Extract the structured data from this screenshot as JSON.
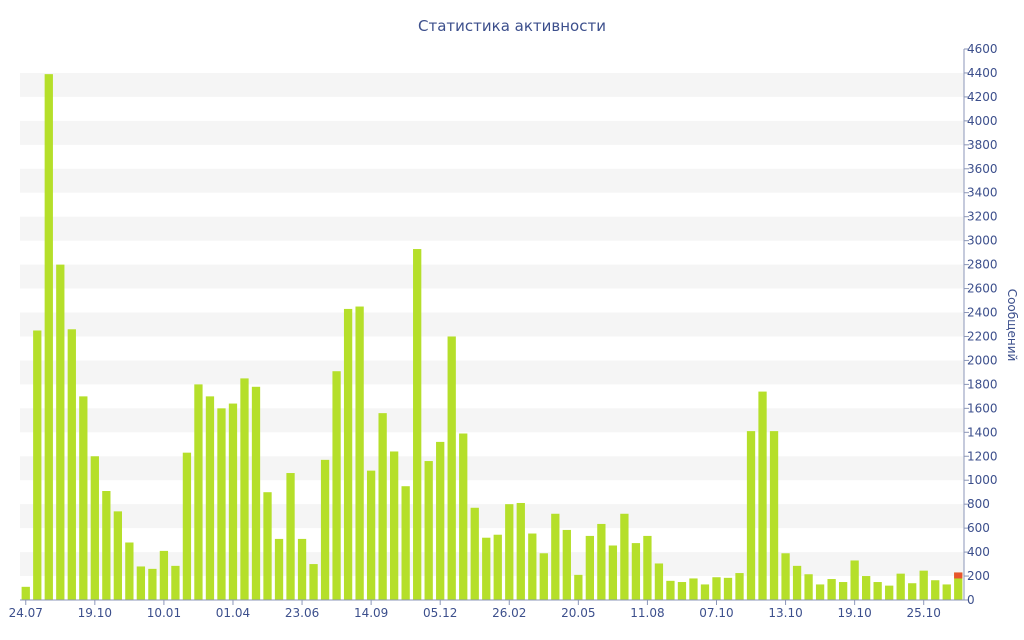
{
  "chart_data": {
    "type": "bar",
    "title": "Статистика активности",
    "ylabel": "Сообщений",
    "ylim": [
      0,
      4600
    ],
    "y_ticks": [
      0,
      200,
      400,
      600,
      800,
      1000,
      1200,
      1400,
      1600,
      1800,
      2000,
      2200,
      2400,
      2600,
      2800,
      3000,
      3200,
      3400,
      3600,
      3800,
      4000,
      4200,
      4400,
      4600
    ],
    "x_tick_labels": [
      {
        "index": 0,
        "label": "24.07"
      },
      {
        "index": 6,
        "label": "19.10"
      },
      {
        "index": 12,
        "label": "10.01"
      },
      {
        "index": 18,
        "label": "01.04"
      },
      {
        "index": 24,
        "label": "23.06"
      },
      {
        "index": 30,
        "label": "14.09"
      },
      {
        "index": 36,
        "label": "05.12"
      },
      {
        "index": 42,
        "label": "26.02"
      },
      {
        "index": 48,
        "label": "20.05"
      },
      {
        "index": 54,
        "label": "11.08"
      },
      {
        "index": 60,
        "label": "07.10"
      },
      {
        "index": 66,
        "label": "13.10"
      },
      {
        "index": 72,
        "label": "19.10"
      },
      {
        "index": 78,
        "label": "25.10"
      }
    ],
    "values": [
      110,
      2250,
      4390,
      2800,
      2260,
      1700,
      1200,
      910,
      740,
      480,
      280,
      260,
      410,
      285,
      1230,
      1800,
      1700,
      1600,
      1640,
      1850,
      1780,
      900,
      510,
      1060,
      510,
      300,
      1170,
      1910,
      2430,
      2450,
      1080,
      1560,
      1240,
      950,
      2930,
      1160,
      1320,
      2200,
      1390,
      770,
      520,
      545,
      800,
      810,
      555,
      390,
      720,
      585,
      210,
      535,
      635,
      455,
      720,
      475,
      535,
      305,
      160,
      150,
      180,
      130,
      190,
      185,
      225,
      1410,
      1740,
      1410,
      390,
      285,
      215,
      130,
      175,
      150,
      330,
      200,
      150,
      120,
      220,
      140,
      245,
      165,
      130,
      230
    ],
    "accent_last": {
      "value": 230,
      "accent_color": "#e8552d"
    },
    "bar_color": "#b5df2a",
    "grid": "alternating bands"
  }
}
